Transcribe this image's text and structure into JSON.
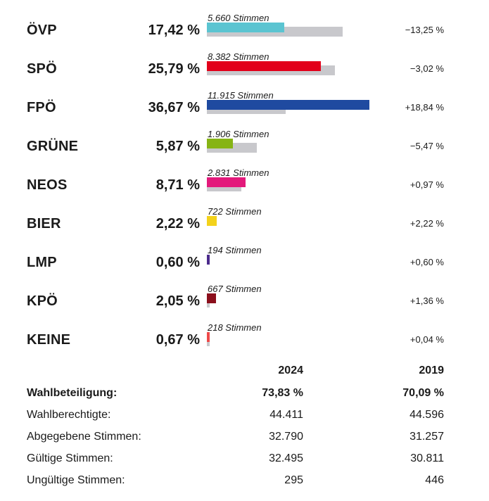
{
  "chart_data": {
    "type": "bar",
    "title": "",
    "categories": [
      "ÖVP",
      "SPÖ",
      "FPÖ",
      "GRÜNE",
      "NEOS",
      "BIER",
      "LMP",
      "KPÖ",
      "KEINE"
    ],
    "series": [
      {
        "name": "2024",
        "values": [
          17.42,
          25.79,
          36.67,
          5.87,
          8.71,
          2.22,
          0.6,
          2.05,
          0.67
        ]
      },
      {
        "name": "2019",
        "values": [
          30.67,
          28.81,
          17.83,
          11.34,
          7.74,
          0.0,
          0.0,
          0.69,
          0.63
        ]
      }
    ],
    "xlim": [
      0,
      100
    ],
    "parties": [
      {
        "name": "ÖVP",
        "pct": "17,42 %",
        "votes": "5.660 Stimmen",
        "change": "−13,25 %",
        "color": "#5bc4d1",
        "cur": 17.42,
        "prev": 30.67
      },
      {
        "name": "SPÖ",
        "pct": "25,79 %",
        "votes": "8.382 Stimmen",
        "change": "−3,02 %",
        "color": "#e2001a",
        "cur": 25.79,
        "prev": 28.81
      },
      {
        "name": "FPÖ",
        "pct": "36,67 %",
        "votes": "11.915 Stimmen",
        "change": "+18,84 %",
        "color": "#1f4aa0",
        "cur": 36.67,
        "prev": 17.83
      },
      {
        "name": "GRÜNE",
        "pct": "5,87 %",
        "votes": "1.906 Stimmen",
        "change": "−5,47 %",
        "color": "#86b415",
        "cur": 5.87,
        "prev": 11.34
      },
      {
        "name": "NEOS",
        "pct": "8,71 %",
        "votes": "2.831 Stimmen",
        "change": "+0,97 %",
        "color": "#e3197b",
        "cur": 8.71,
        "prev": 7.74
      },
      {
        "name": "BIER",
        "pct": "2,22 %",
        "votes": "722 Stimmen",
        "change": "+2,22 %",
        "color": "#f3d21b",
        "cur": 2.22,
        "prev": 0
      },
      {
        "name": "LMP",
        "pct": "0,60 %",
        "votes": "194 Stimmen",
        "change": "+0,60 %",
        "color": "#4b2a8c",
        "cur": 0.6,
        "prev": 0
      },
      {
        "name": "KPÖ",
        "pct": "2,05 %",
        "votes": "667 Stimmen",
        "change": "+1,36 %",
        "color": "#8b0f1c",
        "cur": 2.05,
        "prev": 0.69
      },
      {
        "name": "KEINE",
        "pct": "0,67 %",
        "votes": "218 Stimmen",
        "change": "+0,04 %",
        "color": "#ee4a4a",
        "cur": 0.67,
        "prev": 0.63
      }
    ]
  },
  "stats": {
    "col1": "2024",
    "col2": "2019",
    "rows": [
      {
        "label": "Wahlbeteiligung:",
        "v1": "73,83 %",
        "v2": "70,09 %",
        "bold": true
      },
      {
        "label": "Wahlberechtigte:",
        "v1": "44.411",
        "v2": "44.596",
        "bold": false
      },
      {
        "label": "Abgegebene Stimmen:",
        "v1": "32.790",
        "v2": "31.257",
        "bold": false
      },
      {
        "label": "Gültige Stimmen:",
        "v1": "32.495",
        "v2": "30.811",
        "bold": false
      },
      {
        "label": "Ungültige Stimmen:",
        "v1": "295",
        "v2": "446",
        "bold": false
      }
    ]
  }
}
